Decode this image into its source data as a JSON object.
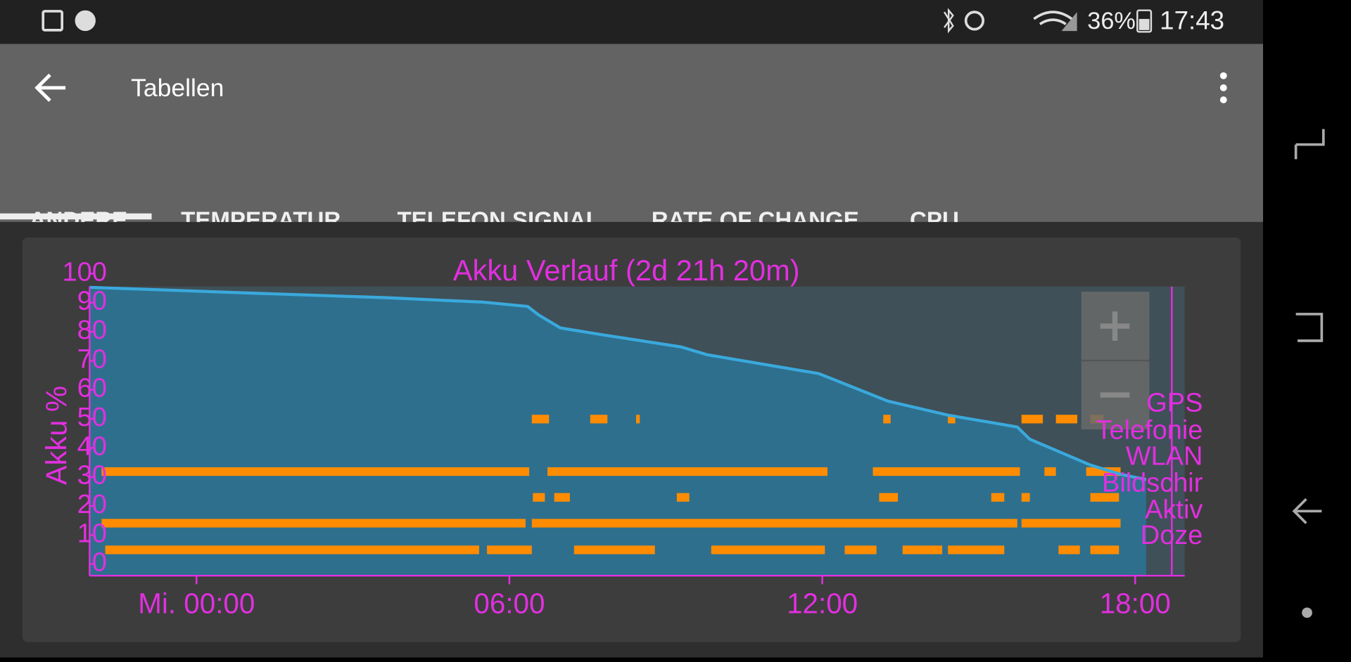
{
  "status_bar": {
    "battery": "36%",
    "time": "17:43"
  },
  "app_bar": {
    "title": "Tabellen"
  },
  "tabs": [
    "ANDERE",
    "TEMPERATUR",
    "TELEFON SIGNAL",
    "RATE OF CHANGE",
    "CPU"
  ],
  "chart_data": {
    "type": "line",
    "title": "Akku Verlauf (2d 21h 20m)",
    "y_label": "Akku %",
    "color": "#3aa9dc",
    "x": [
      -2.05,
      1.19,
      3.67,
      5.49,
      6.35,
      6.56,
      6.98,
      7.8,
      9.29,
      9.79,
      11.93,
      12.35,
      13.26,
      14.41,
      15.74,
      15.98,
      17.14,
      17.72,
      18.21
    ],
    "values": [
      95.3,
      93.2,
      91.7,
      90.2,
      88.7,
      85.8,
      81.3,
      78.9,
      74.8,
      72.1,
      65.6,
      62.6,
      56.1,
      51.3,
      47.2,
      43.0,
      34.1,
      30.9,
      29.1
    ],
    "xlim": [
      -2.05,
      18.95
    ],
    "ylim": [
      -4,
      100
    ],
    "xticks": [
      {
        "value": 0,
        "label": "Mi. 00:00"
      },
      {
        "value": 6,
        "label": "06:00"
      },
      {
        "value": 12,
        "label": "12:00"
      },
      {
        "value": 18,
        "label": "18:00"
      }
    ],
    "yticks": [
      0,
      10,
      20,
      30,
      40,
      50,
      60,
      70,
      80,
      90,
      100
    ],
    "activity_color": "#ff8c00",
    "activity": [
      {
        "name": "GPS",
        "intervals": [
          [
            6.43,
            6.76
          ],
          [
            7.55,
            7.88
          ],
          [
            8.43,
            8.5
          ],
          [
            13.17,
            13.31
          ],
          [
            14.41,
            14.55
          ],
          [
            15.82,
            16.23
          ],
          [
            16.48,
            16.89
          ],
          [
            17.14,
            17.39
          ]
        ]
      },
      {
        "name": "Telefonie",
        "intervals": []
      },
      {
        "name": "WLAN",
        "intervals": [
          [
            -1.82,
            6.38
          ],
          [
            6.73,
            12.1
          ],
          [
            12.97,
            15.79
          ],
          [
            16.26,
            16.48
          ],
          [
            17.06,
            17.72
          ]
        ]
      },
      {
        "name": "Bildschir",
        "intervals": [
          [
            6.45,
            6.68
          ],
          [
            6.86,
            7.16
          ],
          [
            9.21,
            9.45
          ],
          [
            13.09,
            13.45
          ],
          [
            15.24,
            15.49
          ],
          [
            15.82,
            15.98
          ],
          [
            17.14,
            17.69
          ]
        ]
      },
      {
        "name": "Aktiv",
        "intervals": [
          [
            -1.82,
            6.31
          ],
          [
            6.43,
            15.74
          ],
          [
            15.82,
            17.72
          ]
        ]
      },
      {
        "name": "Doze",
        "intervals": [
          [
            -1.75,
            5.42
          ],
          [
            5.57,
            6.43
          ],
          [
            7.24,
            8.79
          ],
          [
            9.87,
            12.05
          ],
          [
            12.43,
            13.04
          ],
          [
            13.54,
            14.3
          ],
          [
            14.41,
            15.49
          ],
          [
            16.53,
            16.94
          ],
          [
            17.14,
            17.69
          ]
        ]
      }
    ]
  }
}
